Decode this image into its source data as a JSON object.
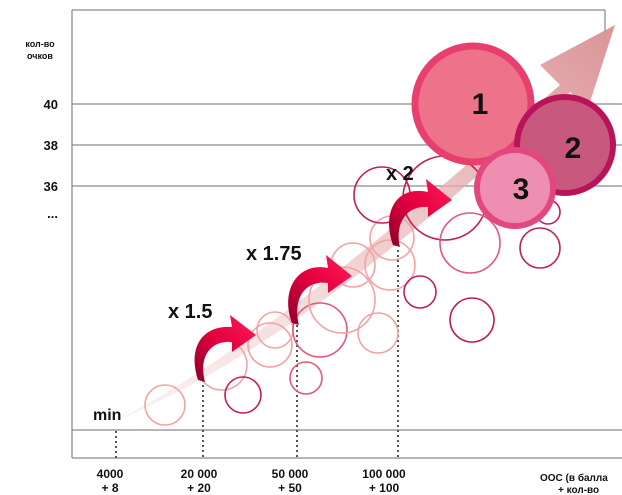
{
  "chart_data": {
    "type": "scatter",
    "title": "",
    "ylabel_line1": "кол-во",
    "ylabel_line2": "очков",
    "xlabel_line1": "ООС (в балла",
    "xlabel_line2": "+ кол-во",
    "yticks": [
      {
        "label": "40",
        "value": 40
      },
      {
        "label": "38",
        "value": 38
      },
      {
        "label": "36",
        "value": 36
      },
      {
        "label": "...",
        "value": 34.9
      }
    ],
    "min_label": "min",
    "xticks": [
      {
        "line1": "4000",
        "line2": "+ 8"
      },
      {
        "line1": "20 000",
        "line2": "+ 20"
      },
      {
        "line1": "50 000",
        "line2": "+ 50"
      },
      {
        "line1": "100 000",
        "line2": "+ 100"
      }
    ],
    "multipliers": [
      {
        "label": "x 1.5",
        "between": [
          "4000",
          "20 000"
        ]
      },
      {
        "label": "x 1.75",
        "between": [
          "20 000",
          "50 000"
        ]
      },
      {
        "label": "x 2",
        "between": [
          "50 000",
          "100 000"
        ]
      }
    ],
    "leaders": [
      {
        "rank": "1",
        "color": "#ec7389"
      },
      {
        "rank": "2",
        "color": "#c8587d"
      },
      {
        "rank": "3",
        "color": "#ee8fb1"
      }
    ],
    "colors": {
      "bubble_light": "#f3a3a3",
      "bubble_mid": "#e0587a",
      "bubble_dark": "#c0205a",
      "trend_arrow": "#dfa3a5",
      "step_arrow": "#d1003c",
      "grid": "#6d6d6d"
    }
  }
}
